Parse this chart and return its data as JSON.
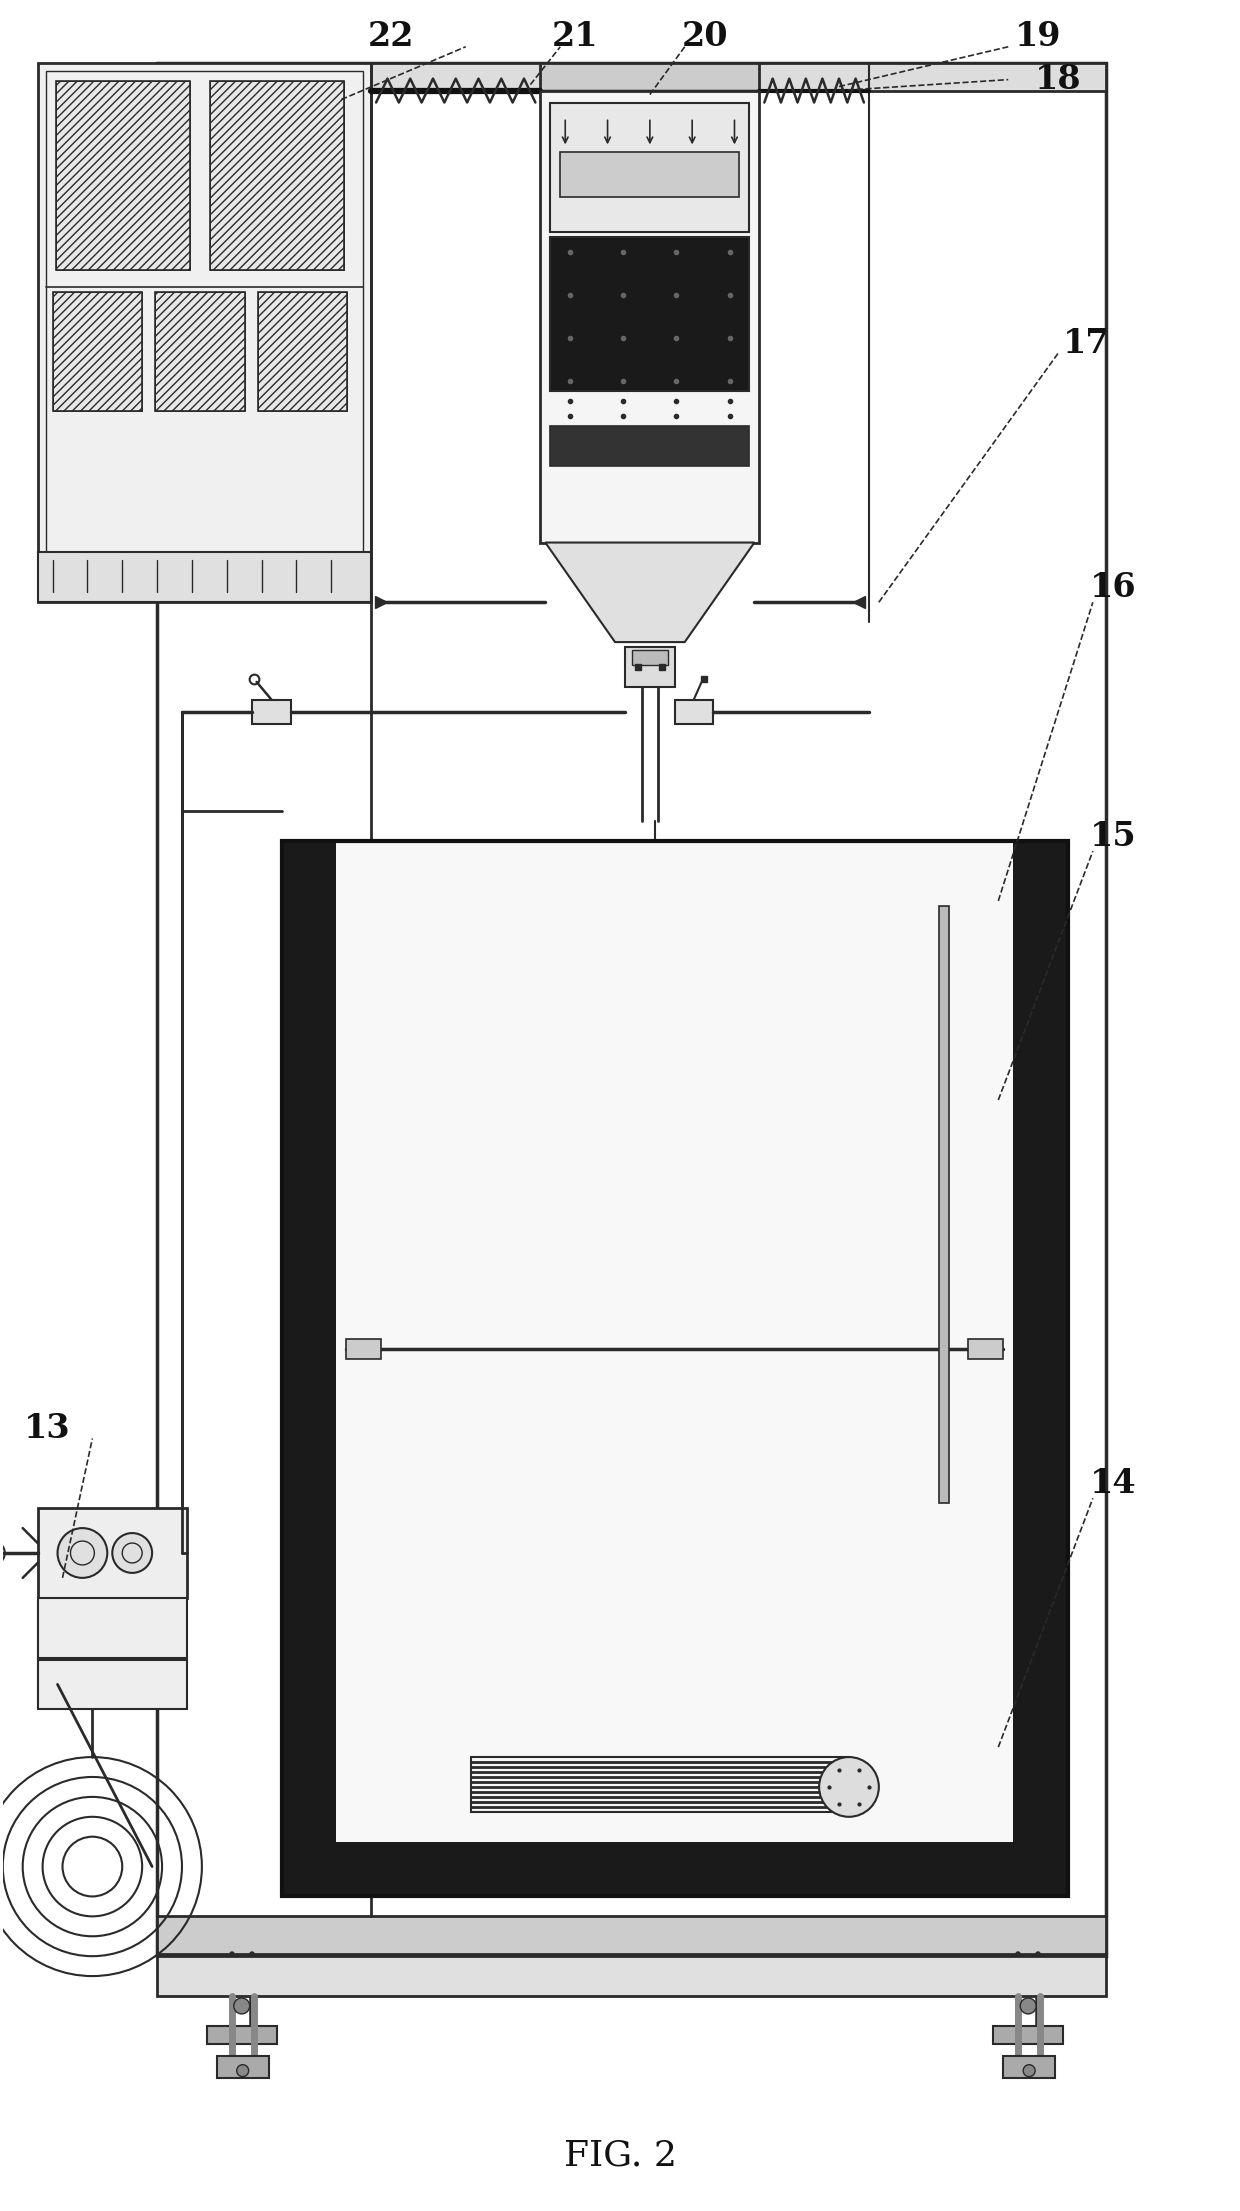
{
  "title": "FIG. 2",
  "bg": "#ffffff",
  "lc": "#2a2a2a",
  "dk": "#111111",
  "fig_width": 12.4,
  "fig_height": 22.11,
  "labels": [
    "13",
    "14",
    "15",
    "16",
    "17",
    "18",
    "19",
    "20",
    "21",
    "22"
  ]
}
